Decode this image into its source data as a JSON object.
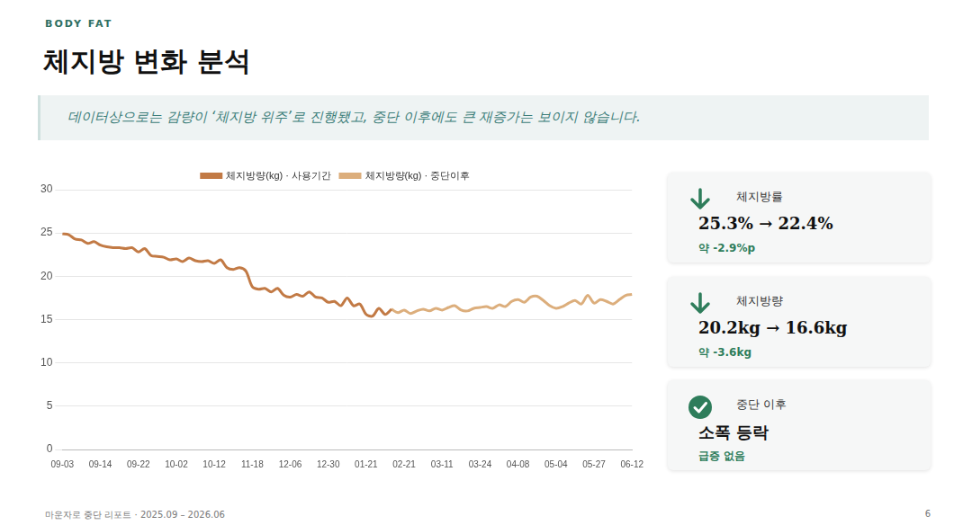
{
  "header": {
    "brand": "BODY FAT",
    "title": "체지방 변화 분석",
    "callout": "데이터상으로는 감량이 ‘체지방 위주’로 진행됐고, 중단 이후에도 큰 재증가는 보이지 않습니다."
  },
  "chart_data": {
    "type": "line",
    "categories": [
      "09-03",
      null,
      null,
      null,
      null,
      null,
      "09-14",
      null,
      null,
      null,
      null,
      null,
      "09-22",
      null,
      null,
      null,
      null,
      null,
      "10-02",
      null,
      null,
      null,
      null,
      null,
      "10-12",
      null,
      null,
      null,
      null,
      null,
      "11-18",
      null,
      null,
      null,
      null,
      null,
      "12-06",
      null,
      null,
      null,
      null,
      null,
      "12-30",
      null,
      null,
      null,
      null,
      null,
      "01-21",
      null,
      null,
      null,
      null,
      null,
      "02-21",
      null,
      null,
      null,
      null,
      null,
      "03-11",
      null,
      null,
      null,
      null,
      null,
      "03-24",
      null,
      null,
      null,
      null,
      null,
      "04-08",
      null,
      null,
      null,
      null,
      null,
      "05-04",
      null,
      null,
      null,
      null,
      null,
      "05-27",
      null,
      null,
      null,
      null,
      null,
      "06-12"
    ],
    "series": [
      {
        "name": "체지방량(kg) · 사용기간",
        "color": "#c27a45",
        "values": [
          24.9,
          24.8,
          24.3,
          24.2,
          23.8,
          24.0,
          23.6,
          23.4,
          23.3,
          23.3,
          23.2,
          23.3,
          22.8,
          23.2,
          22.4,
          22.3,
          22.2,
          21.9,
          22.0,
          21.7,
          22.1,
          21.8,
          21.7,
          21.8,
          21.5,
          21.9,
          21.0,
          20.8,
          21.0,
          20.6,
          18.8,
          18.5,
          18.6,
          18.2,
          18.6,
          17.8,
          17.6,
          17.9,
          17.7,
          18.2,
          17.6,
          17.5,
          17.0,
          17.1,
          16.6,
          17.5,
          16.6,
          16.8,
          15.6,
          15.4,
          16.3,
          15.6,
          16.2,
          null,
          null,
          null,
          null,
          null,
          null,
          null,
          null,
          null,
          null,
          null,
          null,
          null,
          null,
          null,
          null,
          null,
          null,
          null,
          null,
          null,
          null,
          null,
          null,
          null,
          null,
          null,
          null,
          null,
          null,
          null,
          null,
          null,
          null,
          null,
          null,
          null,
          null
        ]
      },
      {
        "name": "체지방량(kg) · 중단이후",
        "color": "#dcae7c",
        "values": [
          null,
          null,
          null,
          null,
          null,
          null,
          null,
          null,
          null,
          null,
          null,
          null,
          null,
          null,
          null,
          null,
          null,
          null,
          null,
          null,
          null,
          null,
          null,
          null,
          null,
          null,
          null,
          null,
          null,
          null,
          null,
          null,
          null,
          null,
          null,
          null,
          null,
          null,
          null,
          null,
          null,
          null,
          null,
          null,
          null,
          null,
          null,
          null,
          null,
          null,
          null,
          null,
          16.2,
          15.8,
          16.1,
          15.7,
          16.0,
          16.2,
          16.0,
          16.3,
          16.1,
          16.4,
          16.6,
          16.1,
          16.0,
          16.3,
          16.4,
          16.5,
          16.3,
          16.7,
          16.5,
          17.1,
          17.3,
          17.0,
          17.6,
          17.7,
          17.2,
          16.6,
          16.3,
          16.5,
          16.9,
          17.2,
          16.8,
          17.8,
          16.9,
          17.3,
          17.1,
          16.8,
          17.3,
          17.8,
          17.9
        ]
      }
    ],
    "ylim": [
      0,
      30
    ],
    "yticks": [
      0,
      5,
      10,
      15,
      20,
      25,
      30
    ],
    "grid": true,
    "legend": "top"
  },
  "cards": [
    {
      "label": "체지방률",
      "value": "25.3% → 22.4%",
      "note": "약 -2.9%p"
    },
    {
      "label": "체지방량",
      "value": "20.2kg → 16.6kg",
      "note": "약 -3.6kg"
    },
    {
      "label": "중단 이후",
      "value": "소폭 등락",
      "note": "급증 없음"
    }
  ],
  "footer": {
    "text": "마운자로 중단 리포트 · 2025.09 – 2026.06",
    "page": "6"
  }
}
